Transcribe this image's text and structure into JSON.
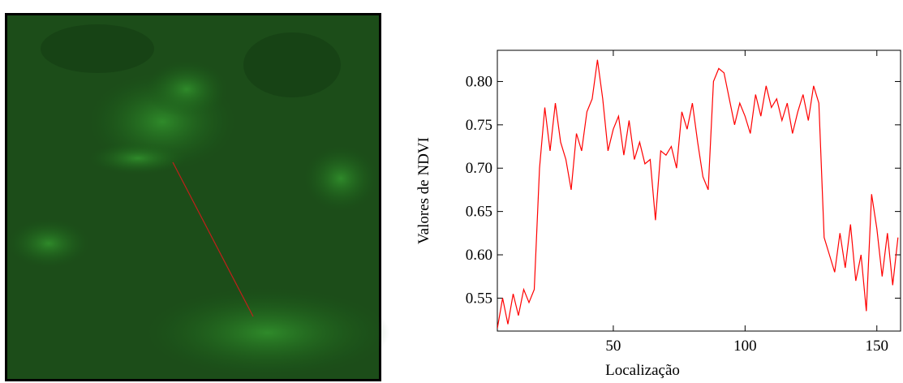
{
  "chart_data": {
    "type": "line",
    "xlabel": "Localização",
    "ylabel": "Valores de NDVI",
    "x": [
      6,
      8,
      10,
      12,
      14,
      16,
      18,
      20,
      22,
      24,
      26,
      28,
      30,
      32,
      34,
      36,
      38,
      40,
      42,
      44,
      46,
      48,
      50,
      52,
      54,
      56,
      58,
      60,
      62,
      64,
      66,
      68,
      70,
      72,
      74,
      76,
      78,
      80,
      82,
      84,
      86,
      88,
      90,
      92,
      94,
      96,
      98,
      100,
      102,
      104,
      106,
      108,
      110,
      112,
      114,
      116,
      118,
      120,
      122,
      124,
      126,
      128,
      130,
      132,
      134,
      136,
      138,
      140,
      142,
      144,
      146,
      148,
      150,
      152,
      154,
      156,
      158
    ],
    "values": [
      0.515,
      0.55,
      0.52,
      0.555,
      0.53,
      0.56,
      0.545,
      0.56,
      0.7,
      0.77,
      0.72,
      0.775,
      0.73,
      0.71,
      0.675,
      0.74,
      0.72,
      0.765,
      0.78,
      0.825,
      0.78,
      0.72,
      0.745,
      0.76,
      0.715,
      0.755,
      0.71,
      0.73,
      0.705,
      0.71,
      0.64,
      0.72,
      0.715,
      0.725,
      0.7,
      0.765,
      0.745,
      0.775,
      0.73,
      0.69,
      0.675,
      0.8,
      0.815,
      0.81,
      0.78,
      0.75,
      0.775,
      0.76,
      0.74,
      0.785,
      0.76,
      0.795,
      0.77,
      0.78,
      0.755,
      0.775,
      0.74,
      0.765,
      0.785,
      0.755,
      0.795,
      0.775,
      0.62,
      0.6,
      0.58,
      0.625,
      0.585,
      0.635,
      0.57,
      0.6,
      0.535,
      0.67,
      0.63,
      0.575,
      0.625,
      0.565,
      0.62
    ],
    "color": "#ff0000",
    "xlim": [
      6,
      159
    ],
    "ylim": [
      0.512,
      0.836
    ],
    "xticks": [
      50,
      100,
      150
    ],
    "yticks": [
      0.55,
      {
        "value": 0.6,
        "label": "0.60"
      },
      0.65,
      {
        "value": 0.7,
        "label": "0.70"
      },
      0.75,
      {
        "value": 0.8,
        "label": "0.80"
      }
    ]
  }
}
